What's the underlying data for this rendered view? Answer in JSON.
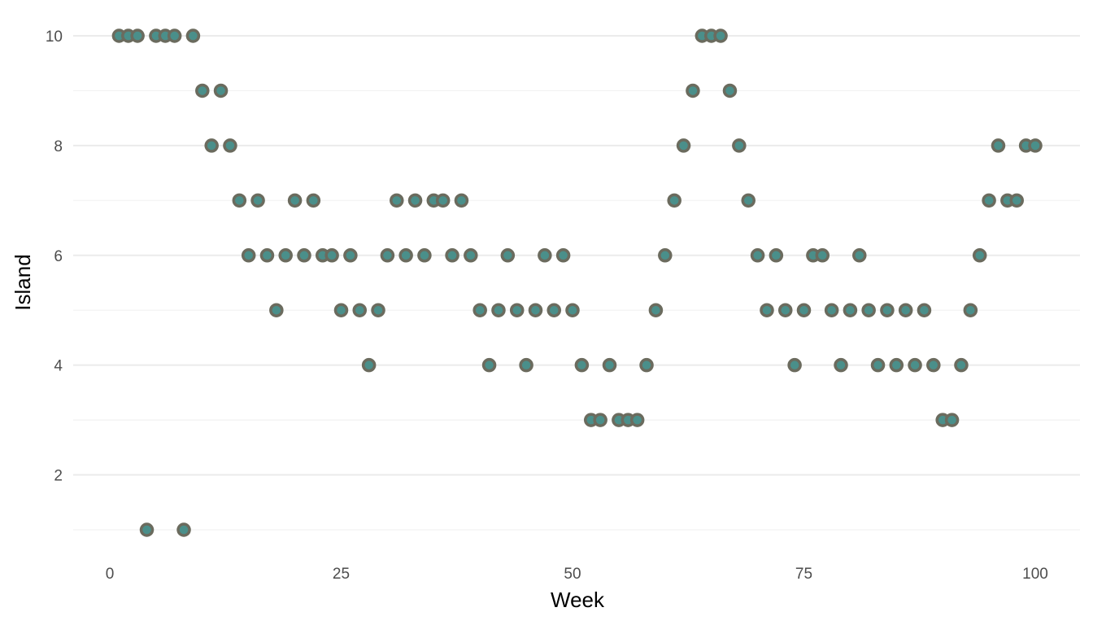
{
  "chart_data": {
    "type": "scatter",
    "title": "",
    "xlabel": "Week",
    "ylabel": "Island",
    "xlim": [
      -4,
      104
    ],
    "ylim": [
      0.5,
      10.4
    ],
    "x_ticks": [
      0,
      25,
      50,
      75,
      100
    ],
    "y_ticks": [
      2,
      4,
      6,
      8,
      10
    ],
    "y_minor_ticks": [
      1,
      3,
      5,
      7,
      9
    ],
    "grid": true,
    "legend": "none",
    "point_fill": "#4a8f8a",
    "point_stroke": "#6b6b5e",
    "series": [
      {
        "x": [
          1,
          2,
          3,
          4,
          5,
          6,
          7,
          8,
          9,
          10,
          11,
          12,
          13,
          14,
          15,
          16,
          17,
          18,
          19,
          20,
          21,
          22,
          23,
          24,
          25,
          26,
          27,
          28,
          29,
          30,
          31,
          32,
          33,
          34,
          35,
          36,
          37,
          38,
          39,
          40,
          41,
          42,
          43,
          44,
          45,
          46,
          47,
          48,
          49,
          50,
          51,
          52,
          53,
          54,
          55,
          56,
          57,
          58,
          59,
          60,
          61,
          62,
          63,
          64,
          65,
          66,
          67,
          68,
          69,
          70,
          71,
          72,
          73,
          74,
          75,
          76,
          77,
          78,
          79,
          80,
          81,
          82,
          83,
          84,
          85,
          86,
          87,
          88,
          89,
          90,
          91,
          92,
          93,
          94,
          95,
          96,
          97,
          98,
          99,
          100
        ],
        "y": [
          10,
          10,
          10,
          1,
          10,
          10,
          10,
          1,
          10,
          9,
          8,
          9,
          8,
          7,
          6,
          7,
          6,
          5,
          6,
          7,
          6,
          7,
          6,
          6,
          5,
          6,
          5,
          4,
          5,
          6,
          7,
          6,
          7,
          6,
          7,
          7,
          6,
          7,
          6,
          5,
          4,
          5,
          6,
          5,
          4,
          5,
          6,
          5,
          6,
          5,
          4,
          3,
          3,
          4,
          3,
          3,
          3,
          4,
          5,
          6,
          7,
          8,
          9,
          10,
          10,
          10,
          9,
          8,
          7,
          6,
          5,
          6,
          5,
          4,
          5,
          6,
          6,
          5,
          4,
          5,
          6,
          5,
          4,
          5,
          4,
          5,
          4,
          5,
          4,
          3,
          3,
          4,
          5,
          6,
          7,
          8,
          7,
          7,
          8,
          8
        ]
      }
    ]
  }
}
